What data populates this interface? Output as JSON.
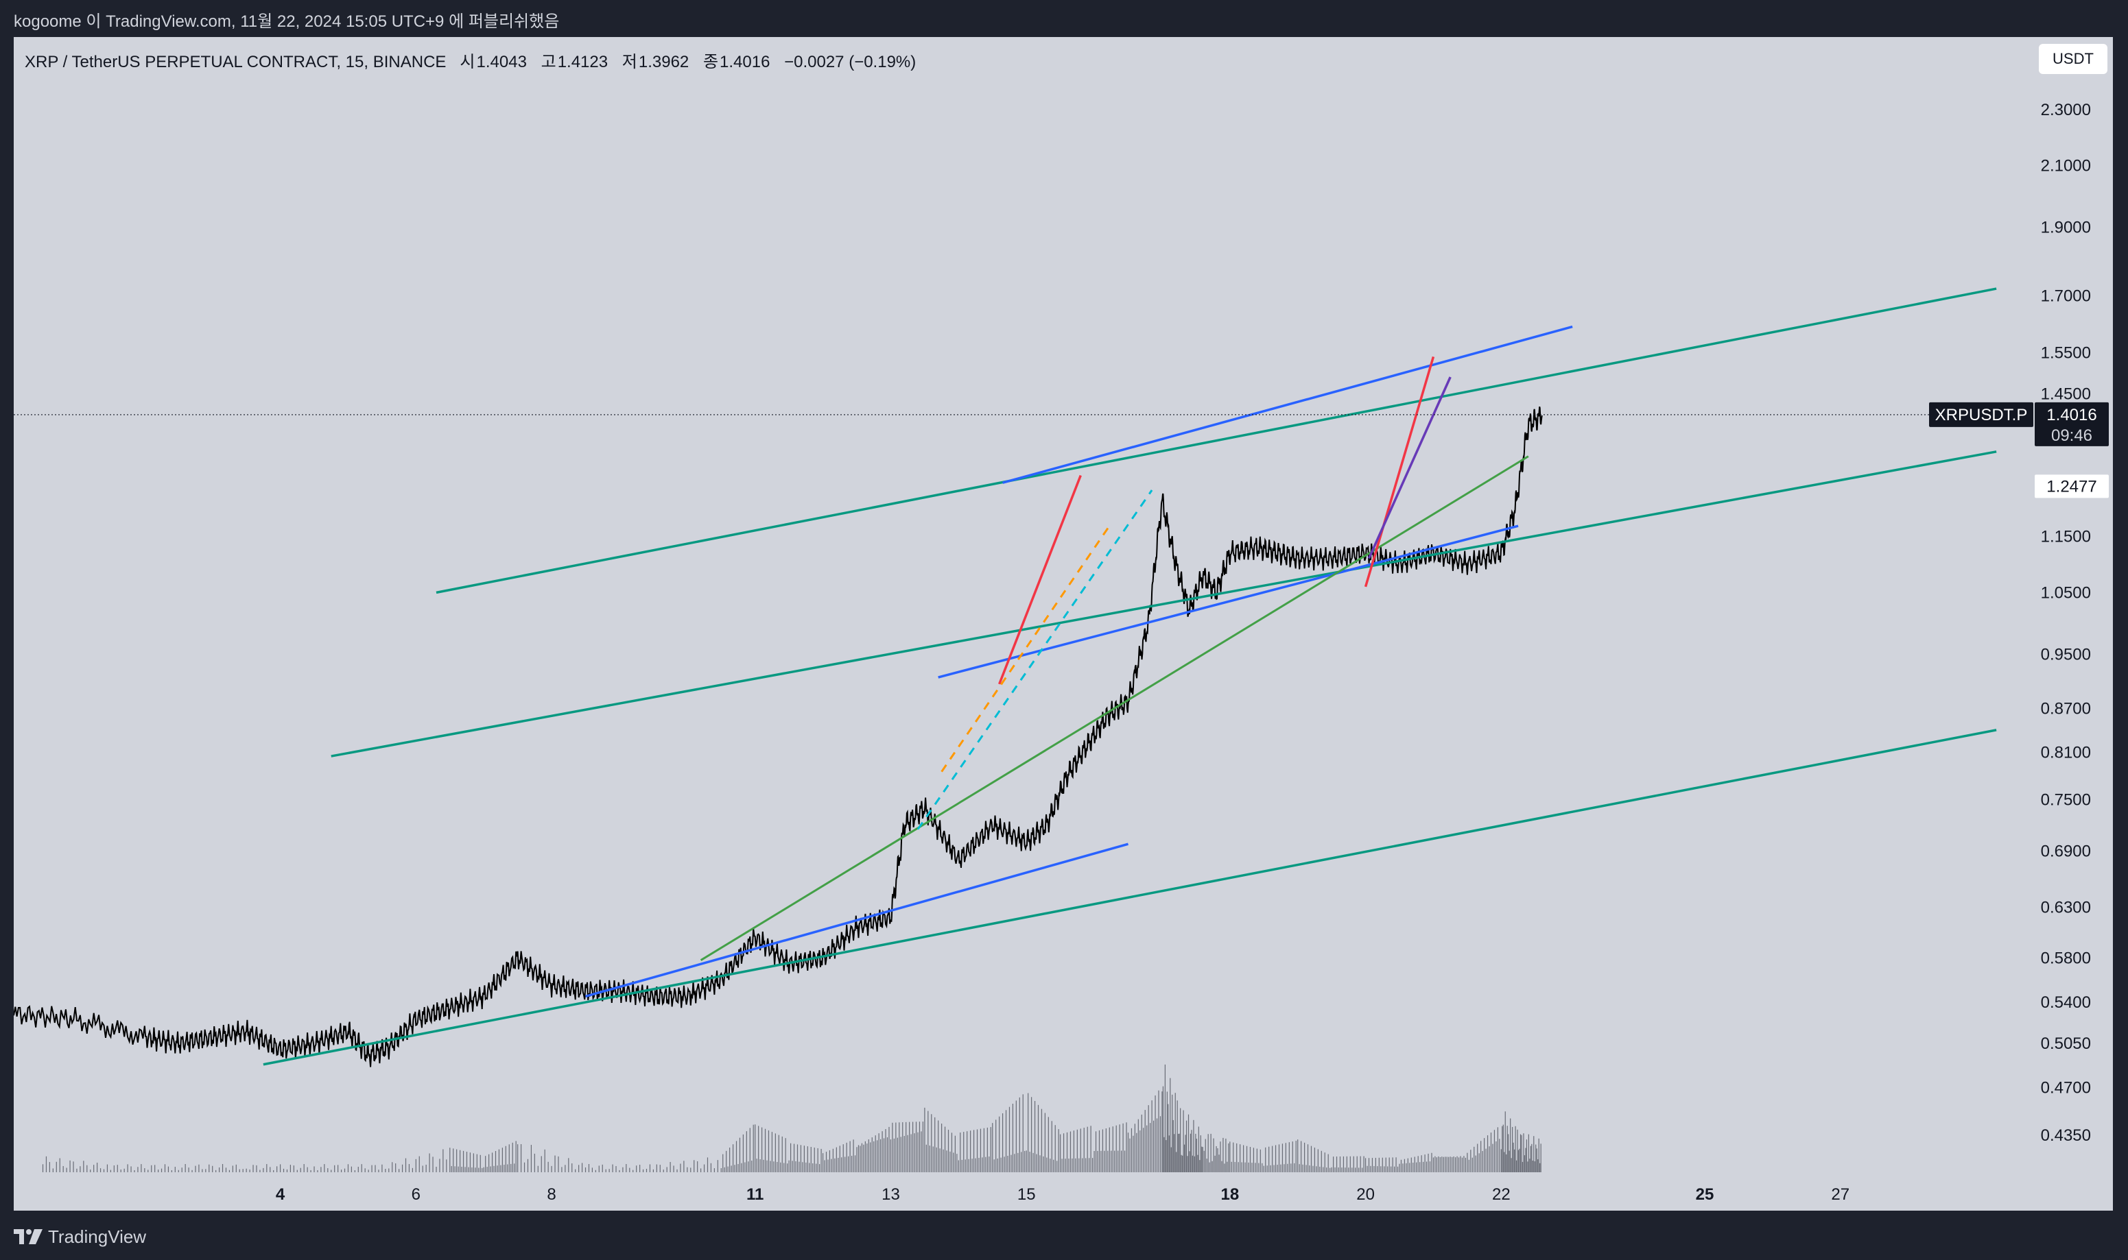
{
  "header": {
    "snapshot_text": "kogoome 이 TradingView.com, 11월 22, 2024 15:05 UTC+9 에 퍼블리쉬했음"
  },
  "symbol": {
    "name": "XRP / TetherUS PERPETUAL CONTRACT, 15, BINANCE",
    "open_label": "시",
    "open": "1.4043",
    "high_label": "고",
    "high": "1.4123",
    "low_label": "저",
    "low": "1.3962",
    "close_label": "종",
    "close": "1.4016",
    "change": "−0.0027 (−0.19%)"
  },
  "currency": "USDT",
  "price_label": {
    "ticker": "XRPUSDT.P",
    "price": "1.4016",
    "countdown": "09:46"
  },
  "marker_label": "1.2477",
  "brand": "TradingView",
  "colors": {
    "candle": "#000000",
    "channel_teal": "#089981",
    "trend_blue": "#2962ff",
    "trend_green": "#43a047",
    "trend_red": "#f23645",
    "trend_purple": "#673ab7",
    "dash_orange": "#ff9800",
    "dash_cyan": "#00bcd4"
  },
  "chart_data": {
    "type": "line",
    "title": "XRP / TetherUS PERPETUAL CONTRACT, 15, BINANCE",
    "y_scale": "log",
    "ylim": [
      0.41,
      2.45
    ],
    "y_ticks": [
      "2.3000",
      "2.1000",
      "1.9000",
      "1.7000",
      "1.5500",
      "1.4500",
      "1.1500",
      "1.0500",
      "0.9500",
      "0.8700",
      "0.8100",
      "0.7500",
      "0.6900",
      "0.6300",
      "0.5800",
      "0.5400",
      "0.5050",
      "0.4700",
      "0.4350"
    ],
    "x_ticks": [
      "4",
      "6",
      "8",
      "11",
      "13",
      "15",
      "18",
      "20",
      "22",
      "25",
      "27"
    ],
    "x_ticks_bold": [
      "4",
      "11",
      "18",
      "25"
    ],
    "x_tick_days": [
      4,
      6,
      8,
      11,
      13,
      15,
      18,
      20,
      22,
      25,
      27
    ],
    "xlim_days": [
      0.07,
      29.4
    ],
    "price_series": {
      "day": [
        0.07,
        1.0,
        2.0,
        2.5,
        3.0,
        3.5,
        4.0,
        4.5,
        5.0,
        5.3,
        5.6,
        6.0,
        6.5,
        7.0,
        7.5,
        8.0,
        8.5,
        9.0,
        9.5,
        10.0,
        10.5,
        11.0,
        11.5,
        12.0,
        12.5,
        13.0,
        13.2,
        13.5,
        14.0,
        14.5,
        15.0,
        15.3,
        15.6,
        15.9,
        16.2,
        16.5,
        16.8,
        17.0,
        17.2,
        17.4,
        17.6,
        17.8,
        18.0,
        18.4,
        18.7,
        19.0,
        19.5,
        20.0,
        20.5,
        21.0,
        21.5,
        22.0,
        22.2,
        22.4,
        22.6
      ],
      "close": [
        0.53,
        0.525,
        0.51,
        0.505,
        0.51,
        0.515,
        0.5,
        0.505,
        0.515,
        0.495,
        0.502,
        0.525,
        0.535,
        0.545,
        0.58,
        0.555,
        0.55,
        0.55,
        0.545,
        0.545,
        0.56,
        0.6,
        0.575,
        0.58,
        0.61,
        0.62,
        0.72,
        0.74,
        0.68,
        0.72,
        0.7,
        0.72,
        0.78,
        0.82,
        0.86,
        0.88,
        1.0,
        1.22,
        1.1,
        1.02,
        1.08,
        1.05,
        1.12,
        1.13,
        1.12,
        1.11,
        1.11,
        1.12,
        1.1,
        1.12,
        1.1,
        1.12,
        1.2,
        1.38,
        1.4
      ]
    },
    "volume_series": {
      "day": [
        0.5,
        1.5,
        2.5,
        3.5,
        4.5,
        5.5,
        6.5,
        7.0,
        7.5,
        8.5,
        9.5,
        10.5,
        11.0,
        11.5,
        12.0,
        12.5,
        13.0,
        13.5,
        14.0,
        14.5,
        15.0,
        15.5,
        16.0,
        16.5,
        17.0,
        17.3,
        17.6,
        18.0,
        18.5,
        19.0,
        19.5,
        20.0,
        20.5,
        21.0,
        21.5,
        22.0,
        22.3,
        22.6
      ],
      "value": [
        2,
        1,
        1,
        1,
        1,
        1,
        3,
        2,
        4,
        1,
        1,
        2,
        6,
        4,
        3,
        5,
        8,
        9,
        5,
        6,
        10,
        5,
        6,
        7,
        14,
        8,
        5,
        4,
        3,
        4,
        2,
        2,
        2,
        3,
        3,
        8,
        5,
        4
      ]
    },
    "drawings": [
      {
        "name": "channel-upper-line",
        "style": "teal",
        "points": [
          [
            6.3,
            1.05
          ],
          [
            29.3,
            1.72
          ]
        ]
      },
      {
        "name": "channel-middle-line",
        "style": "teal",
        "points": [
          [
            4.75,
            0.805
          ],
          [
            29.3,
            1.32
          ]
        ]
      },
      {
        "name": "channel-lower-line",
        "style": "teal",
        "points": [
          [
            3.75,
            0.488
          ],
          [
            29.3,
            0.84
          ]
        ]
      },
      {
        "name": "channel-top-line",
        "style": "teal",
        "points": [
          [
            3.75,
            0.488
          ],
          [
            3.75,
            0.488
          ]
        ]
      },
      {
        "name": "trend-blue-top",
        "style": "blue",
        "points": [
          [
            14.65,
            1.255
          ],
          [
            23.05,
            1.617
          ]
        ]
      },
      {
        "name": "trend-blue-mid",
        "style": "blue",
        "points": [
          [
            13.7,
            0.915
          ],
          [
            22.25,
            1.17
          ]
        ]
      },
      {
        "name": "trend-blue-low",
        "style": "blue",
        "points": [
          [
            8.5,
            0.545
          ],
          [
            16.5,
            0.698
          ]
        ]
      },
      {
        "name": "trend-green",
        "style": "green",
        "points": [
          [
            10.2,
            0.578
          ],
          [
            22.4,
            1.31
          ]
        ]
      },
      {
        "name": "trend-red-1",
        "style": "red",
        "points": [
          [
            14.6,
            0.905
          ],
          [
            15.8,
            1.27
          ]
        ]
      },
      {
        "name": "trend-red-2",
        "style": "red",
        "points": [
          [
            20.0,
            1.06
          ],
          [
            21.0,
            1.54
          ]
        ]
      },
      {
        "name": "trend-purple",
        "style": "purple",
        "points": [
          [
            20.05,
            1.11
          ],
          [
            21.25,
            1.49
          ]
        ]
      },
      {
        "name": "dash-orange",
        "style": "orange",
        "points": [
          [
            13.75,
            0.785
          ],
          [
            16.25,
            1.175
          ]
        ]
      },
      {
        "name": "dash-cyan",
        "style": "cyan",
        "points": [
          [
            13.4,
            0.715
          ],
          [
            16.85,
            1.24
          ]
        ]
      }
    ],
    "last_price": 1.4016,
    "marker_price": 1.2477,
    "grid": false,
    "legend": "none"
  }
}
